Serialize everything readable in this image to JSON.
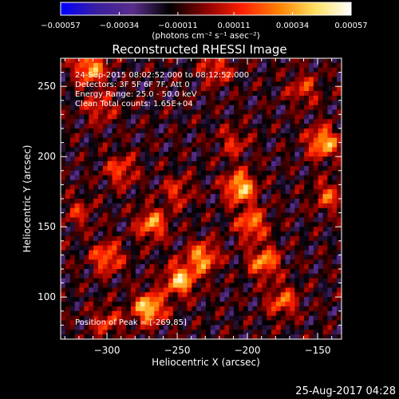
{
  "chart_data": {
    "type": "heatmap",
    "title": "Reconstructed RHESSI Image",
    "xlabel": "Heliocentric X (arcsec)",
    "ylabel": "Heliocentric Y (arcsec)",
    "xlim": [
      -333,
      -133
    ],
    "ylim": [
      70,
      270
    ],
    "x_ticks": [
      -300,
      -250,
      -200,
      -150
    ],
    "y_ticks": [
      100,
      150,
      200,
      250
    ],
    "x_tick_labels": [
      "−300",
      "−250",
      "−200",
      "−150"
    ],
    "y_tick_labels": [
      "100",
      "150",
      "200",
      "250"
    ],
    "colorbar": {
      "ticks": [
        -0.00057,
        -0.00034,
        -0.00011,
        0.00011,
        0.00034,
        0.00057
      ],
      "tick_labels": [
        "−0.00057",
        "−0.00034",
        "−0.00011",
        "0.00011",
        "0.00034",
        "0.00057"
      ],
      "unit_label": "(photons cm⁻² s⁻¹ asec⁻²)",
      "vmin": -0.00057,
      "vmax": 0.00057
    },
    "annotations": [
      "24-Sep-2015 08:02:52.000 to 08:12:52.000",
      "Detectors: 3F 5F 6F 7F, Att 0",
      "Energy Range: 25.0 - 50.0 keV",
      "Clean    Total counts: 1.65E+04"
    ],
    "peak_label": "Position of Peak = [-269,85]",
    "peak_position": [
      -269,
      85
    ],
    "hot_spots": [
      {
        "x": -270,
        "y": 92,
        "value": 0.00057
      },
      {
        "x": -248,
        "y": 112,
        "value": 0.00052
      },
      {
        "x": -232,
        "y": 128,
        "value": 0.00046
      },
      {
        "x": -205,
        "y": 178,
        "value": 0.00055
      },
      {
        "x": -197,
        "y": 152,
        "value": 0.0004
      },
      {
        "x": -188,
        "y": 125,
        "value": 0.00043
      },
      {
        "x": -146,
        "y": 210,
        "value": 0.0005
      },
      {
        "x": -142,
        "y": 172,
        "value": 0.0003
      },
      {
        "x": -312,
        "y": 263,
        "value": 0.00048
      },
      {
        "x": -305,
        "y": 235,
        "value": 0.00026
      },
      {
        "x": -268,
        "y": 152,
        "value": 0.00042
      },
      {
        "x": -300,
        "y": 128,
        "value": 0.00038
      },
      {
        "x": -290,
        "y": 190,
        "value": 0.0003
      },
      {
        "x": -222,
        "y": 262,
        "value": 0.00028
      },
      {
        "x": -175,
        "y": 97,
        "value": 0.00034
      },
      {
        "x": -300,
        "y": 82,
        "value": 0.00025
      },
      {
        "x": -160,
        "y": 248,
        "value": 0.00026
      },
      {
        "x": -210,
        "y": 210,
        "value": 0.00022
      },
      {
        "x": -250,
        "y": 175,
        "value": 0.00024
      },
      {
        "x": -320,
        "y": 160,
        "value": 0.0002
      }
    ]
  },
  "footer": {
    "timestamp": "25-Aug-2017 04:28"
  },
  "colors": {
    "background": "#000000",
    "axis": "#ffffff",
    "text": "#ffffff",
    "colormap": [
      "#0000ff",
      "#3a1fa0",
      "#5a2d8a",
      "#000000",
      "#8b0000",
      "#ff2000",
      "#ff8000",
      "#ffe060",
      "#ffffff"
    ]
  }
}
